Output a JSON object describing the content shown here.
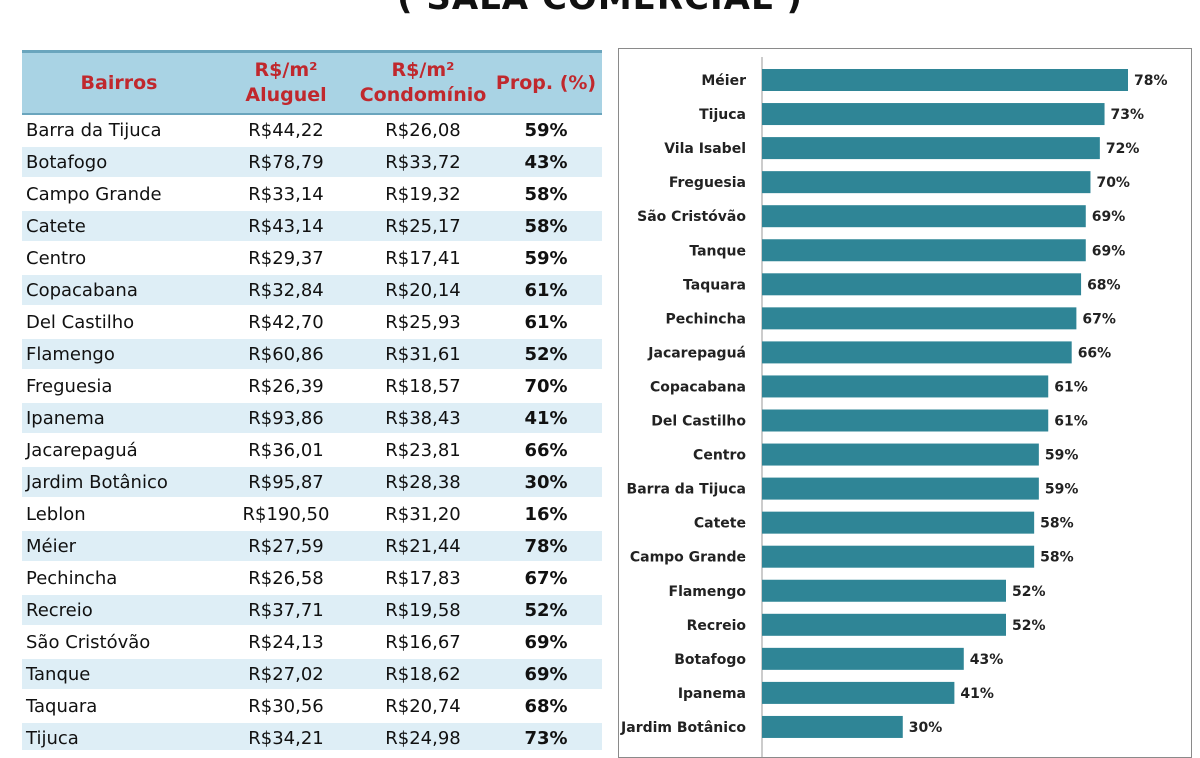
{
  "title": "( SALA COMERCIAL )",
  "table": {
    "headers": {
      "bairros": "Bairros",
      "aluguel_l1": "R$/m²",
      "aluguel_l2": "Aluguel",
      "condominio_l1": "R$/m²",
      "condominio_l2": "Condomínio",
      "prop": "Prop. (%)"
    },
    "rows": [
      {
        "bairro": "Barra da Tijuca",
        "aluguel": "R$44,22",
        "condominio": "R$26,08",
        "prop": "59%"
      },
      {
        "bairro": "Botafogo",
        "aluguel": "R$78,79",
        "condominio": "R$33,72",
        "prop": "43%"
      },
      {
        "bairro": "Campo Grande",
        "aluguel": "R$33,14",
        "condominio": "R$19,32",
        "prop": "58%"
      },
      {
        "bairro": "Catete",
        "aluguel": "R$43,14",
        "condominio": "R$25,17",
        "prop": "58%"
      },
      {
        "bairro": "Centro",
        "aluguel": "R$29,37",
        "condominio": "R$17,41",
        "prop": "59%"
      },
      {
        "bairro": "Copacabana",
        "aluguel": "R$32,84",
        "condominio": "R$20,14",
        "prop": "61%"
      },
      {
        "bairro": "Del Castilho",
        "aluguel": "R$42,70",
        "condominio": "R$25,93",
        "prop": "61%"
      },
      {
        "bairro": "Flamengo",
        "aluguel": "R$60,86",
        "condominio": "R$31,61",
        "prop": "52%"
      },
      {
        "bairro": "Freguesia",
        "aluguel": "R$26,39",
        "condominio": "R$18,57",
        "prop": "70%"
      },
      {
        "bairro": "Ipanema",
        "aluguel": "R$93,86",
        "condominio": "R$38,43",
        "prop": "41%"
      },
      {
        "bairro": "Jacarepaguá",
        "aluguel": "R$36,01",
        "condominio": "R$23,81",
        "prop": "66%"
      },
      {
        "bairro": "Jardim Botânico",
        "aluguel": "R$95,87",
        "condominio": "R$28,38",
        "prop": "30%"
      },
      {
        "bairro": "Leblon",
        "aluguel": "R$190,50",
        "condominio": "R$31,20",
        "prop": "16%"
      },
      {
        "bairro": "Méier",
        "aluguel": "R$27,59",
        "condominio": "R$21,44",
        "prop": "78%"
      },
      {
        "bairro": "Pechincha",
        "aluguel": "R$26,58",
        "condominio": "R$17,83",
        "prop": "67%"
      },
      {
        "bairro": "Recreio",
        "aluguel": "R$37,71",
        "condominio": "R$19,58",
        "prop": "52%"
      },
      {
        "bairro": "São Cristóvão",
        "aluguel": "R$24,13",
        "condominio": "R$16,67",
        "prop": "69%"
      },
      {
        "bairro": "Tanque",
        "aluguel": "R$27,02",
        "condominio": "R$18,62",
        "prop": "69%"
      },
      {
        "bairro": "Taquara",
        "aluguel": "R$30,56",
        "condominio": "R$20,74",
        "prop": "68%"
      },
      {
        "bairro": "Tijuca",
        "aluguel": "R$34,21",
        "condominio": "R$24,98",
        "prop": "73%"
      }
    ]
  },
  "chart_data": {
    "type": "bar",
    "orientation": "horizontal",
    "title": "",
    "xlabel": "",
    "ylabel": "",
    "categories": [
      "Méier",
      "Tijuca",
      "Vila Isabel",
      "Freguesia",
      "São Cristóvão",
      "Tanque",
      "Taquara",
      "Pechincha",
      "Jacarepaguá",
      "Copacabana",
      "Del Castilho",
      "Centro",
      "Barra da Tijuca",
      "Catete",
      "Campo Grande",
      "Flamengo",
      "Recreio",
      "Botafogo",
      "Ipanema",
      "Jardim Botânico"
    ],
    "values": [
      78,
      73,
      72,
      70,
      69,
      69,
      68,
      67,
      66,
      61,
      61,
      59,
      59,
      58,
      58,
      52,
      52,
      43,
      41,
      30
    ],
    "value_labels": [
      "78%",
      "73%",
      "72%",
      "70%",
      "69%",
      "69%",
      "68%",
      "67%",
      "66%",
      "61%",
      "61%",
      "59%",
      "59%",
      "58%",
      "58%",
      "52%",
      "52%",
      "43%",
      "41%",
      "30%"
    ],
    "xlim": [
      0,
      78
    ],
    "bar_color": "#2f8596",
    "grid": false,
    "legend": "none"
  }
}
